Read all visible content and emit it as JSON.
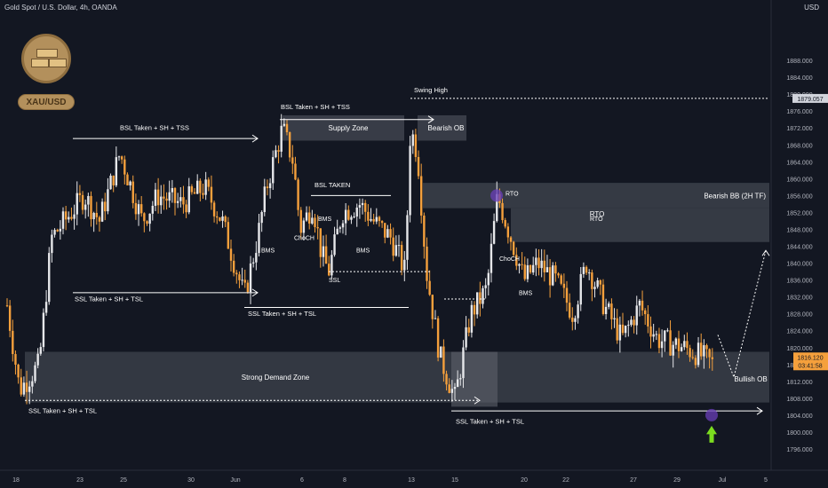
{
  "header": {
    "title": "Gold Spot / U.S. Dollar, 4h, OANDA",
    "currency": "USD"
  },
  "logo": {
    "label": "XAU/USD"
  },
  "price_tags": {
    "swing_high": "1879.057",
    "current": "1816.120",
    "countdown": "03:41:58"
  },
  "chart_data": {
    "type": "candlestick",
    "y_axis": {
      "ticks": [
        1796,
        1800,
        1804,
        1808,
        1812,
        1816,
        1820,
        1824,
        1828,
        1832,
        1836,
        1840,
        1844,
        1848,
        1852,
        1856,
        1860,
        1864,
        1868,
        1872,
        1876,
        1880,
        1884,
        1888
      ]
    },
    "x_axis": {
      "ticks": [
        "18",
        "23",
        "25",
        "30",
        "Jun",
        "6",
        "8",
        "13",
        "15",
        "20",
        "22",
        "27",
        "29",
        "Jul",
        "5"
      ]
    },
    "trend": [
      {
        "x": 8,
        "p": 1830
      },
      {
        "x": 22,
        "p": 1810
      },
      {
        "x": 44,
        "p": 1816
      },
      {
        "x": 58,
        "p": 1846
      },
      {
        "x": 95,
        "p": 1856
      },
      {
        "x": 112,
        "p": 1850
      },
      {
        "x": 135,
        "p": 1866
      },
      {
        "x": 160,
        "p": 1850
      },
      {
        "x": 178,
        "p": 1856
      },
      {
        "x": 205,
        "p": 1854
      },
      {
        "x": 230,
        "p": 1858
      },
      {
        "x": 250,
        "p": 1850
      },
      {
        "x": 275,
        "p": 1832
      },
      {
        "x": 290,
        "p": 1846
      },
      {
        "x": 300,
        "p": 1858
      },
      {
        "x": 318,
        "p": 1872
      },
      {
        "x": 330,
        "p": 1864
      },
      {
        "x": 338,
        "p": 1848
      },
      {
        "x": 352,
        "p": 1854
      },
      {
        "x": 362,
        "p": 1842
      },
      {
        "x": 370,
        "p": 1838
      },
      {
        "x": 385,
        "p": 1852
      },
      {
        "x": 405,
        "p": 1854
      },
      {
        "x": 420,
        "p": 1850
      },
      {
        "x": 440,
        "p": 1846
      },
      {
        "x": 456,
        "p": 1838
      },
      {
        "x": 462,
        "p": 1872
      },
      {
        "x": 470,
        "p": 1866
      },
      {
        "x": 480,
        "p": 1838
      },
      {
        "x": 495,
        "p": 1818
      },
      {
        "x": 512,
        "p": 1808
      },
      {
        "x": 530,
        "p": 1828
      },
      {
        "x": 548,
        "p": 1834
      },
      {
        "x": 560,
        "p": 1856
      },
      {
        "x": 575,
        "p": 1846
      },
      {
        "x": 590,
        "p": 1836
      },
      {
        "x": 605,
        "p": 1840
      },
      {
        "x": 625,
        "p": 1836
      },
      {
        "x": 645,
        "p": 1828
      },
      {
        "x": 660,
        "p": 1840
      },
      {
        "x": 680,
        "p": 1830
      },
      {
        "x": 700,
        "p": 1822
      },
      {
        "x": 720,
        "p": 1830
      },
      {
        "x": 740,
        "p": 1822
      },
      {
        "x": 770,
        "p": 1820
      },
      {
        "x": 790,
        "p": 1818
      },
      {
        "x": 803,
        "p": 1816
      }
    ],
    "zones": [
      {
        "label": "Supply Zone",
        "p1": 1869,
        "p2": 1875
      },
      {
        "label": "Bearish OB",
        "p1": 1869,
        "p2": 1875
      },
      {
        "label": "Bearish BB (2H TF)",
        "p1": 1853,
        "p2": 1859
      },
      {
        "label": "RTO",
        "p1": 1845,
        "p2": 1853
      },
      {
        "label": "Strong Demand Zone",
        "p1": 1807,
        "p2": 1819
      },
      {
        "label": "Bullish OB",
        "p1": 1806,
        "p2": 1819
      }
    ],
    "annotations": [
      "Swing High",
      "BSL Taken + SH + TSS",
      "BSL Taken + SH + TSS",
      "BSL TAKEN",
      "SSL Taken + SH + TSL",
      "SSL Taken + SH + TSL",
      "SSL Taken + SH + TSL",
      "SSL Taken + SH + TSL",
      "SSL",
      "ChoCH",
      "ChoCH",
      "BMS",
      "BMS",
      "BMS",
      "BMS",
      "RTO",
      "RTO"
    ]
  }
}
